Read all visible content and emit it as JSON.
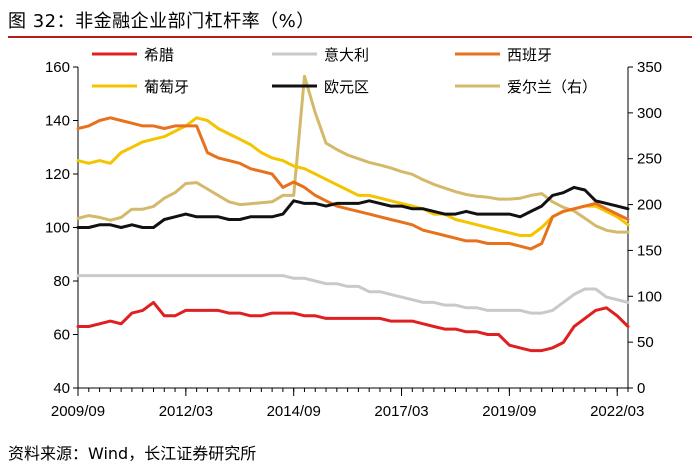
{
  "page": {
    "title": "图 32：非金融企业部门杠杆率（%）",
    "source": "资料来源：Wind，长江证券研究所"
  },
  "chart_data": {
    "type": "line",
    "x_tick_labels": [
      "2009/09",
      "2012/03",
      "2014/09",
      "2017/03",
      "2019/09",
      "2022/03"
    ],
    "x_range": [
      "2009Q3",
      "2022Q1"
    ],
    "y_left": {
      "ylim": [
        40,
        160
      ],
      "ticks": [
        40,
        60,
        80,
        100,
        120,
        140,
        160
      ]
    },
    "y_right": {
      "ylim": [
        0,
        350
      ],
      "ticks": [
        0,
        50,
        100,
        150,
        200,
        250,
        300,
        350
      ]
    },
    "series": [
      {
        "name": "希腊",
        "color": "#e02020",
        "axis": "left",
        "values": [
          63,
          63,
          64,
          65,
          64,
          68,
          69,
          72,
          67,
          67,
          69,
          69,
          69,
          69,
          68,
          68,
          67,
          67,
          68,
          68,
          68,
          67,
          67,
          66,
          66,
          66,
          66,
          66,
          66,
          65,
          65,
          65,
          64,
          63,
          62,
          62,
          61,
          61,
          60,
          60,
          56,
          55,
          54,
          54,
          55,
          57,
          63,
          66,
          69,
          70,
          67,
          63
        ]
      },
      {
        "name": "意大利",
        "color": "#c9c9c9",
        "axis": "left",
        "values": [
          82,
          82,
          82,
          82,
          82,
          82,
          82,
          82,
          82,
          82,
          82,
          82,
          82,
          82,
          82,
          82,
          82,
          82,
          82,
          82,
          81,
          81,
          80,
          79,
          79,
          78,
          78,
          76,
          76,
          75,
          74,
          73,
          72,
          72,
          71,
          71,
          70,
          70,
          69,
          69,
          69,
          69,
          68,
          68,
          69,
          72,
          75,
          77,
          77,
          74,
          73,
          72
        ]
      },
      {
        "name": "西班牙",
        "color": "#e8711c",
        "axis": "left",
        "values": [
          137,
          138,
          140,
          141,
          140,
          139,
          138,
          138,
          137,
          138,
          138,
          138,
          128,
          126,
          125,
          124,
          122,
          121,
          120,
          115,
          117,
          115,
          112,
          110,
          108,
          107,
          106,
          105,
          104,
          103,
          102,
          101,
          99,
          98,
          97,
          96,
          95,
          95,
          94,
          94,
          94,
          93,
          92,
          94,
          104,
          106,
          107,
          108,
          109,
          107,
          105,
          103
        ]
      },
      {
        "name": "葡萄牙",
        "color": "#f5c400",
        "axis": "left",
        "values": [
          125,
          124,
          125,
          124,
          128,
          130,
          132,
          133,
          134,
          136,
          138,
          141,
          140,
          137,
          135,
          133,
          131,
          128,
          126,
          125,
          123,
          122,
          120,
          118,
          116,
          114,
          112,
          112,
          111,
          110,
          109,
          108,
          107,
          105,
          105,
          103,
          102,
          101,
          100,
          99,
          98,
          97,
          97,
          100,
          104,
          106,
          107,
          108,
          108,
          106,
          104,
          101
        ]
      },
      {
        "name": "欧元区",
        "color": "#111111",
        "axis": "left",
        "values": [
          100,
          100,
          101,
          101,
          100,
          101,
          100,
          100,
          103,
          104,
          105,
          104,
          104,
          104,
          103,
          103,
          104,
          104,
          104,
          105,
          110,
          109,
          109,
          108,
          109,
          109,
          109,
          110,
          109,
          108,
          108,
          107,
          107,
          106,
          105,
          105,
          106,
          105,
          105,
          105,
          105,
          104,
          106,
          108,
          112,
          113,
          115,
          114,
          110,
          109,
          108,
          107
        ]
      },
      {
        "name": "爱尔兰（右）",
        "color": "#d4b96a",
        "axis": "right",
        "values": [
          185,
          188,
          186,
          183,
          186,
          195,
          195,
          198,
          207,
          213,
          223,
          224,
          217,
          210,
          203,
          200,
          201,
          202,
          203,
          210,
          210,
          340,
          300,
          267,
          260,
          254,
          250,
          246,
          243,
          240,
          236,
          233,
          227,
          222,
          218,
          214,
          211,
          209,
          208,
          206,
          206,
          207,
          210,
          212,
          203,
          197,
          193,
          185,
          177,
          172,
          170,
          170
        ]
      }
    ],
    "legend": {
      "position": "top",
      "columns": 3
    }
  }
}
